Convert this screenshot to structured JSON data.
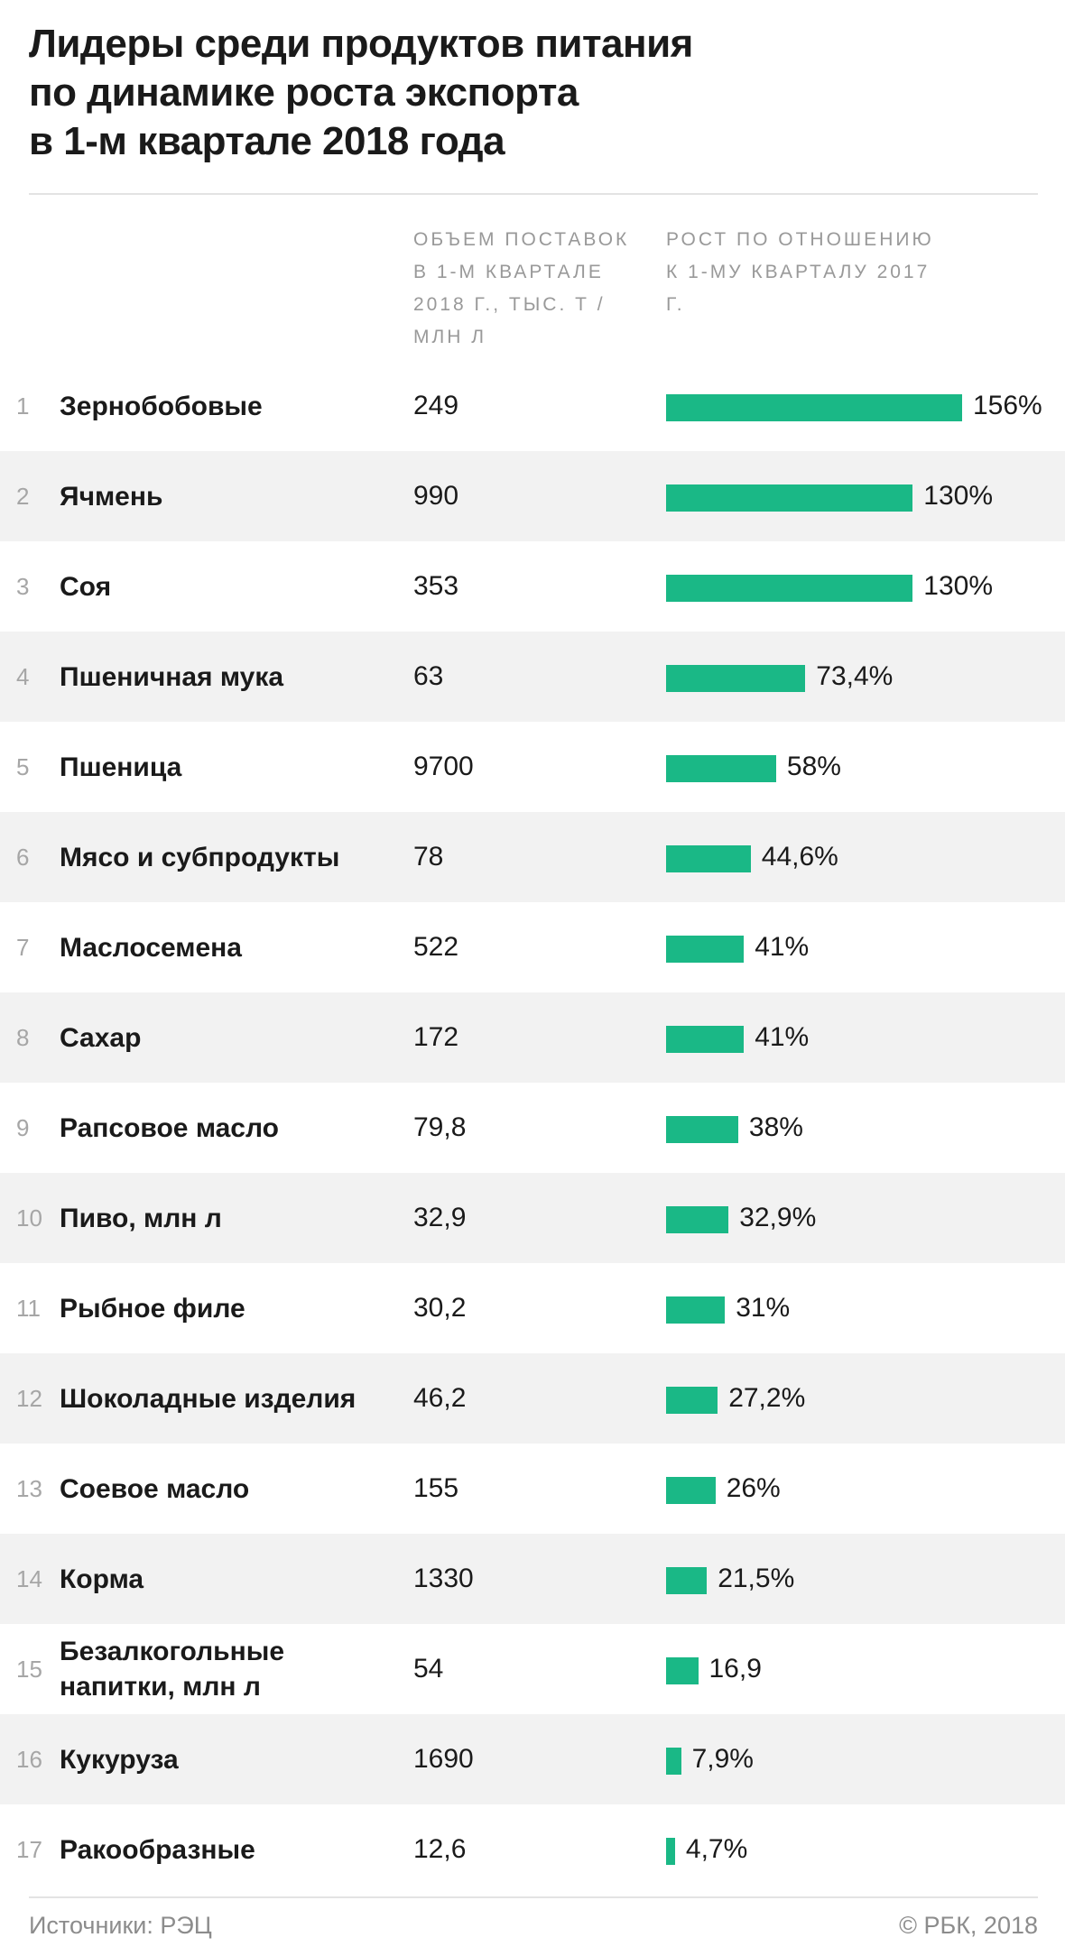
{
  "header": {
    "title_lines": [
      "Лидеры среди продуктов питания",
      "по динамике роста экспорта",
      "в 1-м квартале 2018 года"
    ]
  },
  "columns": {
    "volume": "Объем поставок в 1-м квартале 2018 г., тыс. т / млн л",
    "growth": "Рост по отношению к 1-му кварталу 2017 г."
  },
  "footer": {
    "source": "Источники: РЭЦ",
    "copyright": "© РБК, 2018"
  },
  "colors": {
    "bar": "#1ab886",
    "row_shade": "#f2f2f2"
  },
  "chart_data": {
    "type": "bar",
    "orientation": "horizontal",
    "title": "Лидеры среди продуктов питания по динамике роста экспорта в 1-м квартале 2018 года",
    "categories": [
      "Зернобобовые",
      "Ячмень",
      "Соя",
      "Пшеничная мука",
      "Пшеница",
      "Мясо и субпродукты",
      "Маслосемена",
      "Сахар",
      "Рапсовое масло",
      "Пиво, млн л",
      "Рыбное филе",
      "Шоколадные изделия",
      "Соевое масло",
      "Корма",
      "Безалкогольные напитки, млн л",
      "Кукуруза",
      "Ракообразные"
    ],
    "ranks": [
      "1",
      "2",
      "3",
      "4",
      "5",
      "6",
      "7",
      "8",
      "9",
      "10",
      "11",
      "12",
      "13",
      "14",
      "15",
      "16",
      "17"
    ],
    "volumes": [
      "249",
      "990",
      "353",
      "63",
      "9700",
      "78",
      "522",
      "172",
      "79,8",
      "32,9",
      "30,2",
      "46,2",
      "155",
      "1330",
      "54",
      "1690",
      "12,6"
    ],
    "values": [
      156,
      130,
      130,
      73.4,
      58,
      44.6,
      41,
      41,
      38,
      32.9,
      31,
      27.2,
      26,
      21.5,
      16.9,
      7.9,
      4.7
    ],
    "value_labels": [
      "156%",
      "130%",
      "130%",
      "73,4%",
      "58%",
      "44,6%",
      "41%",
      "41%",
      "38%",
      "32,9%",
      "31%",
      "27,2%",
      "26%",
      "21,5%",
      "16,9",
      "7,9%",
      "4,7%"
    ],
    "xlim": [
      0,
      156
    ]
  }
}
